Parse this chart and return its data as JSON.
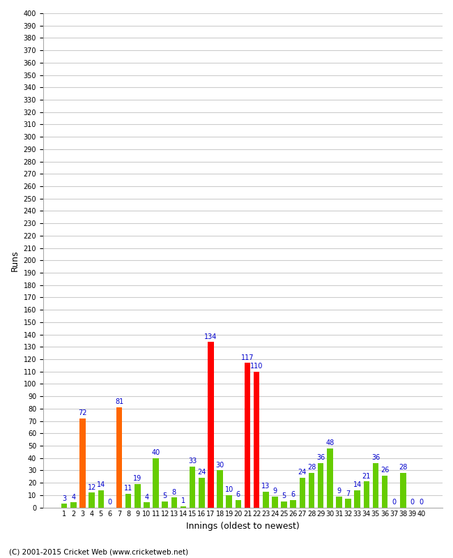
{
  "innings": [
    1,
    2,
    3,
    4,
    5,
    6,
    7,
    8,
    9,
    10,
    11,
    12,
    13,
    14,
    15,
    16,
    17,
    18,
    19,
    20,
    21,
    22,
    23,
    24,
    25,
    26,
    27,
    28,
    29,
    30,
    31,
    32,
    33,
    34,
    35,
    36,
    37,
    38,
    39,
    40
  ],
  "values": [
    3,
    4,
    72,
    12,
    14,
    0,
    81,
    11,
    19,
    4,
    40,
    5,
    8,
    1,
    33,
    24,
    134,
    30,
    10,
    6,
    117,
    110,
    13,
    9,
    5,
    6,
    24,
    28,
    36,
    48,
    9,
    7,
    14,
    21,
    36,
    26,
    0,
    28,
    0,
    0
  ],
  "colors": [
    "#66cc00",
    "#66cc00",
    "#ff6600",
    "#66cc00",
    "#66cc00",
    "#66cc00",
    "#ff6600",
    "#66cc00",
    "#66cc00",
    "#66cc00",
    "#66cc00",
    "#66cc00",
    "#66cc00",
    "#66cc00",
    "#66cc00",
    "#66cc00",
    "#ff0000",
    "#66cc00",
    "#66cc00",
    "#66cc00",
    "#ff0000",
    "#ff0000",
    "#66cc00",
    "#66cc00",
    "#66cc00",
    "#66cc00",
    "#66cc00",
    "#66cc00",
    "#66cc00",
    "#66cc00",
    "#66cc00",
    "#66cc00",
    "#66cc00",
    "#66cc00",
    "#66cc00",
    "#66cc00",
    "#66cc00",
    "#66cc00",
    "#66cc00",
    "#66cc00"
  ],
  "ylabel": "Runs",
  "xlabel": "Innings (oldest to newest)",
  "ylim": [
    0,
    400
  ],
  "yticks": [
    0,
    10,
    20,
    30,
    40,
    50,
    60,
    70,
    80,
    90,
    100,
    110,
    120,
    130,
    140,
    150,
    160,
    170,
    180,
    190,
    200,
    210,
    220,
    230,
    240,
    250,
    260,
    270,
    280,
    290,
    300,
    310,
    320,
    330,
    340,
    350,
    360,
    370,
    380,
    390,
    400
  ],
  "footer": "(C) 2001-2015 Cricket Web (www.cricketweb.net)",
  "plot_bg_color": "#ffffff",
  "fig_bg_color": "#ffffff",
  "grid_color": "#cccccc",
  "label_color": "#0000cc",
  "label_fontsize": 7,
  "tick_fontsize": 7,
  "axis_label_fontsize": 9,
  "bar_width": 0.65
}
